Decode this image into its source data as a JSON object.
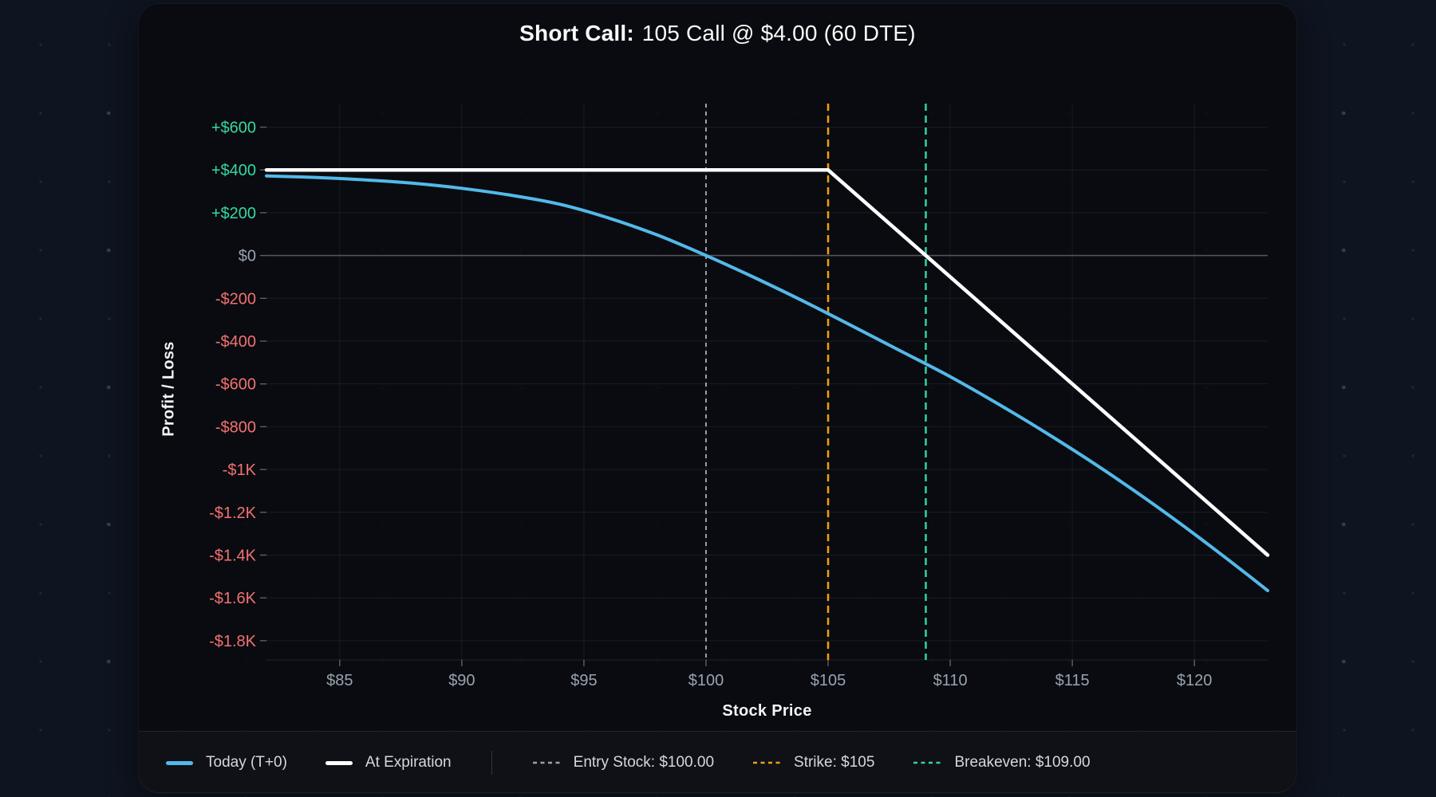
{
  "title": {
    "label_bold": "Short Call:",
    "label_rest": "105 Call @ $4.00 (60 DTE)"
  },
  "chart_data": {
    "type": "line",
    "title": "Short Call: 105 Call @ $4.00 (60 DTE)",
    "xlabel": "Stock Price",
    "ylabel": "Profit / Loss",
    "x_domain": [
      82,
      123
    ],
    "y_domain": [
      -1890,
      710
    ],
    "grid": true,
    "legend_position": "bottom",
    "x_ticks": [
      {
        "value": 85,
        "label": "$85"
      },
      {
        "value": 90,
        "label": "$90"
      },
      {
        "value": 95,
        "label": "$95"
      },
      {
        "value": 100,
        "label": "$100"
      },
      {
        "value": 105,
        "label": "$105"
      },
      {
        "value": 110,
        "label": "$110"
      },
      {
        "value": 115,
        "label": "$115"
      },
      {
        "value": 120,
        "label": "$120"
      }
    ],
    "y_ticks": [
      {
        "value": 600,
        "label": "+$600"
      },
      {
        "value": 400,
        "label": "+$400"
      },
      {
        "value": 200,
        "label": "+$200"
      },
      {
        "value": 0,
        "label": "$0"
      },
      {
        "value": -200,
        "label": "-$200"
      },
      {
        "value": -400,
        "label": "-$400"
      },
      {
        "value": -600,
        "label": "-$600"
      },
      {
        "value": -800,
        "label": "-$800"
      },
      {
        "value": -1000,
        "label": "-$1K"
      },
      {
        "value": -1200,
        "label": "-$1.2K"
      },
      {
        "value": -1400,
        "label": "-$1.4K"
      },
      {
        "value": -1600,
        "label": "-$1.6K"
      },
      {
        "value": -1800,
        "label": "-$1.8K"
      }
    ],
    "series": [
      {
        "name": "Today (T+0)",
        "color": "#53b9e9",
        "width": 4,
        "smooth": true,
        "points": [
          [
            82,
            372
          ],
          [
            84,
            365
          ],
          [
            86,
            354
          ],
          [
            88,
            338
          ],
          [
            90,
            314
          ],
          [
            92,
            282
          ],
          [
            94,
            240
          ],
          [
            96,
            176
          ],
          [
            98,
            96
          ],
          [
            100,
            0
          ],
          [
            102,
            -104
          ],
          [
            104,
            -214
          ],
          [
            106,
            -330
          ],
          [
            108,
            -448
          ],
          [
            110,
            -566
          ],
          [
            112,
            -696
          ],
          [
            114,
            -834
          ],
          [
            116,
            -980
          ],
          [
            118,
            -1136
          ],
          [
            120,
            -1302
          ],
          [
            122,
            -1476
          ],
          [
            123,
            -1566
          ]
        ]
      },
      {
        "name": "At Expiration",
        "color": "#ffffff",
        "width": 4.5,
        "smooth": false,
        "points": [
          [
            82,
            400
          ],
          [
            105,
            400
          ],
          [
            123,
            -1400
          ]
        ]
      }
    ],
    "markers": [
      {
        "name": "Entry Stock: $100.00",
        "value": 100,
        "color": "#97a1ad",
        "dash": "5 5",
        "width": 2
      },
      {
        "name": "Strike: $105",
        "value": 105,
        "color": "#f59e0b",
        "dash": "9 6",
        "width": 2.5
      },
      {
        "name": "Breakeven: $109.00",
        "value": 109,
        "color": "#30d5a0",
        "dash": "9 6",
        "width": 2.5
      }
    ],
    "tick_colors": {
      "positive": "#36d9a0",
      "negative": "#f47171",
      "zero": "#9ca3af",
      "x_axis": "#9aa3af"
    },
    "grid_color": "rgba(255,255,255,0.07)",
    "zero_line_color": "rgba(255,255,255,0.30)"
  }
}
